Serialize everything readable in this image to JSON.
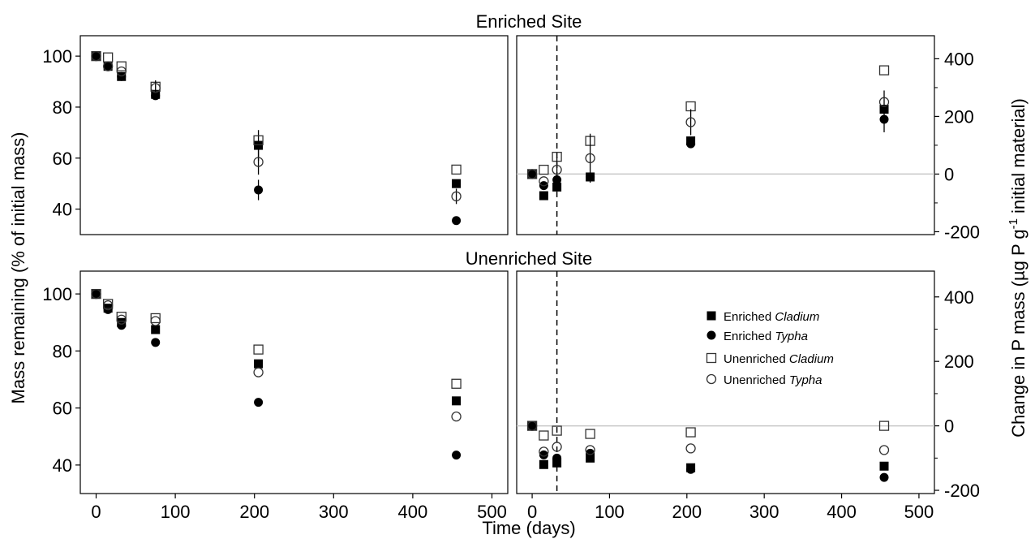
{
  "figure": {
    "top_title": "Enriched Site",
    "bottom_title": "Unenriched Site",
    "xlabel": "Time (days)",
    "ylabel_left": "Mass remaining (% of initial mass)",
    "ylabel_right_pre": "Change in P mass (µg P g",
    "ylabel_right_sup": "-1",
    "ylabel_right_post": " initial material)",
    "legend": [
      {
        "prefix": "Enriched ",
        "italic": "Cladium"
      },
      {
        "prefix": "Enriched ",
        "italic": "Typha"
      },
      {
        "prefix": "Unenriched ",
        "italic": "Cladium"
      },
      {
        "prefix": "Unenriched ",
        "italic": "Typha"
      }
    ]
  },
  "chart_data": [
    {
      "type": "scatter",
      "panel": "enriched-mass",
      "xlim": [
        -20,
        520
      ],
      "ylim": [
        30,
        108
      ],
      "xticks": [
        0,
        100,
        200,
        300,
        400,
        500
      ],
      "yticks": [
        40,
        60,
        80,
        100
      ],
      "x": [
        0,
        15,
        32,
        75,
        205,
        455
      ],
      "series": [
        {
          "name": "Enriched Cladium",
          "marker": "square-filled",
          "values": [
            100,
            96,
            92,
            85,
            65,
            50
          ],
          "err": [
            0,
            0,
            0,
            0,
            6,
            0
          ]
        },
        {
          "name": "Enriched Typha",
          "marker": "circle-filled",
          "values": [
            100,
            96,
            92,
            84.5,
            47.5,
            35.5
          ],
          "err": [
            0,
            0,
            0,
            0,
            4,
            0
          ]
        },
        {
          "name": "Unenriched Cladium",
          "marker": "square-open",
          "values": [
            100,
            99.5,
            96,
            88,
            67,
            55.5
          ],
          "err": [
            0,
            0,
            0,
            0,
            0,
            0
          ]
        },
        {
          "name": "Unenriched Typha",
          "marker": "circle-open",
          "values": [
            100,
            96,
            94,
            87.5,
            58.5,
            45
          ],
          "err": [
            0,
            0,
            0,
            3,
            5,
            3
          ]
        }
      ]
    },
    {
      "type": "scatter",
      "panel": "enriched-p",
      "xlim": [
        -20,
        520
      ],
      "ylim": [
        -210,
        480
      ],
      "xticks": [
        0,
        100,
        200,
        300,
        400,
        500
      ],
      "yticks": [
        -200,
        0,
        200,
        400
      ],
      "reference_lines": {
        "horizontal": 0,
        "vertical_dashed": 32
      },
      "x": [
        0,
        15,
        32,
        75,
        205,
        455
      ],
      "series": [
        {
          "name": "Enriched Cladium",
          "marker": "square-filled",
          "values": [
            0,
            -75,
            -45,
            -10,
            115,
            225
          ],
          "err": [
            0,
            0,
            0,
            0,
            0,
            0
          ]
        },
        {
          "name": "Enriched Typha",
          "marker": "circle-filled",
          "values": [
            0,
            -40,
            -20,
            -10,
            105,
            190
          ],
          "err": [
            0,
            0,
            0,
            0,
            0,
            45
          ]
        },
        {
          "name": "Unenriched Cladium",
          "marker": "square-open",
          "values": [
            0,
            15,
            60,
            115,
            235,
            360
          ],
          "err": [
            0,
            0,
            0,
            0,
            0,
            0
          ]
        },
        {
          "name": "Unenriched Typha",
          "marker": "circle-open",
          "values": [
            0,
            -25,
            15,
            55,
            180,
            250
          ],
          "err": [
            0,
            0,
            45,
            85,
            45,
            40
          ]
        }
      ]
    },
    {
      "type": "scatter",
      "panel": "unenriched-mass",
      "xlim": [
        -20,
        520
      ],
      "ylim": [
        30,
        108
      ],
      "xticks": [
        0,
        100,
        200,
        300,
        400,
        500
      ],
      "yticks": [
        40,
        60,
        80,
        100
      ],
      "x": [
        0,
        15,
        32,
        75,
        205,
        455
      ],
      "series": [
        {
          "name": "Enriched Cladium",
          "marker": "square-filled",
          "values": [
            100,
            95,
            90,
            87.5,
            75.5,
            62.5
          ],
          "err": [
            0,
            0,
            0,
            0,
            0,
            0
          ]
        },
        {
          "name": "Enriched Typha",
          "marker": "circle-filled",
          "values": [
            100,
            94.5,
            89,
            83,
            62,
            43.5
          ],
          "err": [
            0,
            0,
            0,
            0,
            0,
            0
          ]
        },
        {
          "name": "Unenriched Cladium",
          "marker": "square-open",
          "values": [
            100,
            96.5,
            92,
            91.5,
            80.5,
            68.5
          ],
          "err": [
            0,
            0,
            0,
            0,
            0,
            0
          ]
        },
        {
          "name": "Unenriched Typha",
          "marker": "circle-open",
          "values": [
            100,
            96,
            91,
            90.5,
            72.5,
            57
          ],
          "err": [
            0,
            0,
            0,
            0,
            0,
            0
          ]
        }
      ]
    },
    {
      "type": "scatter",
      "panel": "unenriched-p",
      "xlim": [
        -20,
        520
      ],
      "ylim": [
        -210,
        480
      ],
      "xticks": [
        0,
        100,
        200,
        300,
        400,
        500
      ],
      "yticks": [
        -200,
        0,
        200,
        400
      ],
      "reference_lines": {
        "horizontal": 0,
        "vertical_dashed": 32
      },
      "x": [
        0,
        15,
        32,
        75,
        205,
        455
      ],
      "series": [
        {
          "name": "Enriched Cladium",
          "marker": "square-filled",
          "values": [
            0,
            -120,
            -115,
            -100,
            -130,
            -125
          ],
          "err": [
            0,
            0,
            0,
            0,
            0,
            0
          ]
        },
        {
          "name": "Enriched Typha",
          "marker": "circle-filled",
          "values": [
            0,
            -90,
            -100,
            -85,
            -135,
            -160
          ],
          "err": [
            0,
            0,
            0,
            0,
            0,
            0
          ]
        },
        {
          "name": "Unenriched Cladium",
          "marker": "square-open",
          "values": [
            0,
            -30,
            -15,
            -25,
            -20,
            0
          ],
          "err": [
            0,
            0,
            0,
            0,
            0,
            0
          ]
        },
        {
          "name": "Unenriched Typha",
          "marker": "circle-open",
          "values": [
            0,
            -80,
            -65,
            -75,
            -70,
            -75
          ],
          "err": [
            0,
            0,
            0,
            0,
            0,
            0
          ]
        }
      ]
    }
  ]
}
